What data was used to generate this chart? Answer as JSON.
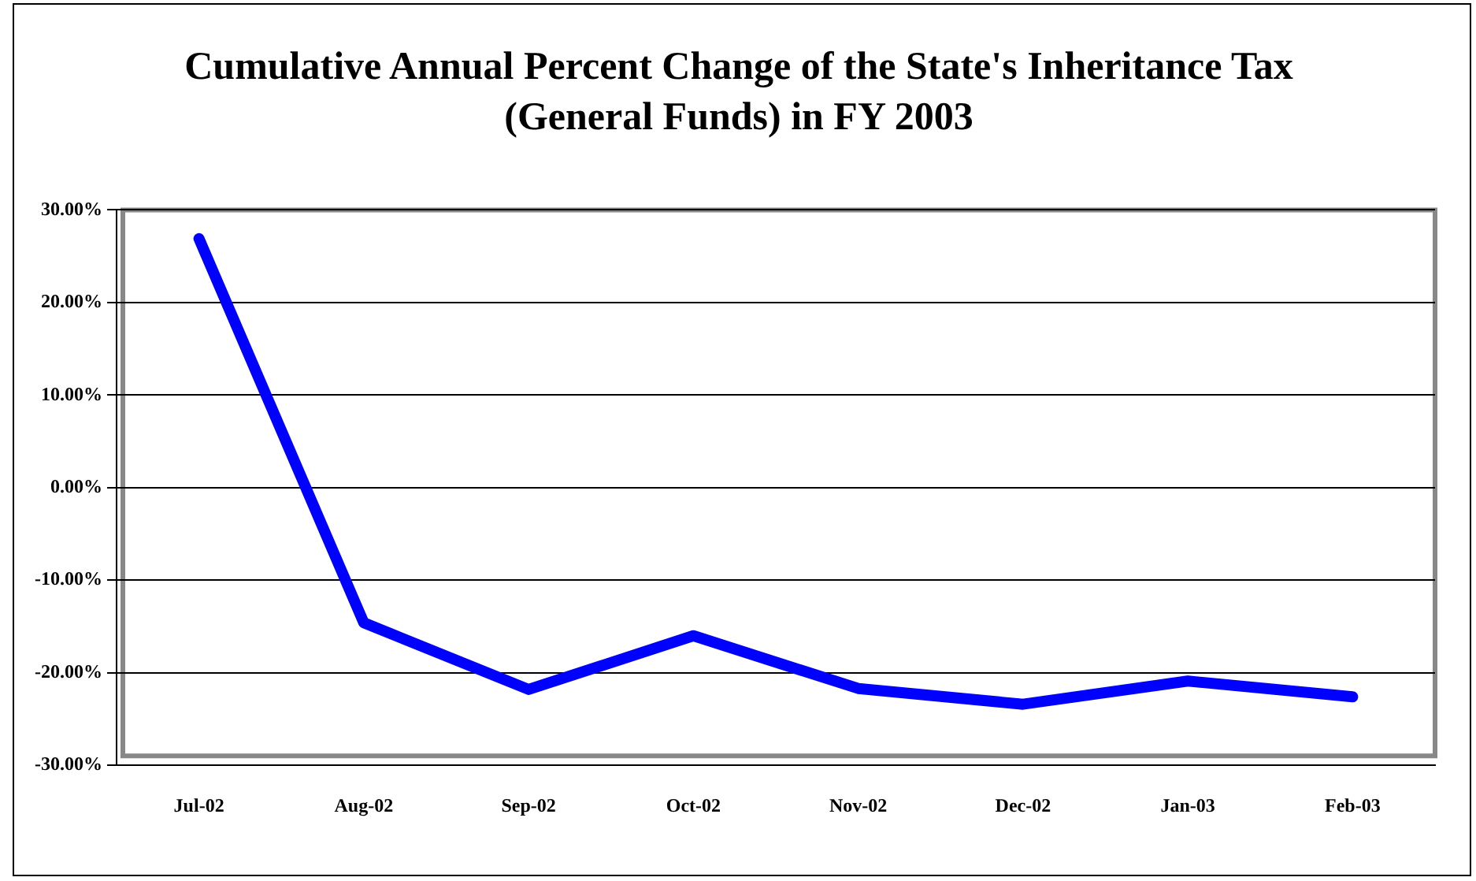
{
  "chart_data": {
    "type": "line",
    "title": "Cumulative Annual Percent Change of the State's Inheritance Tax (General Funds) in FY 2003",
    "categories": [
      "Jul-02",
      "Aug-02",
      "Sep-02",
      "Oct-02",
      "Nov-02",
      "Dec-02",
      "Jan-03",
      "Feb-03"
    ],
    "series": [
      {
        "color": "#0000ff",
        "values": [
          26.9,
          -14.6,
          -21.8,
          -16.0,
          -21.7,
          -23.4,
          -20.9,
          -22.6
        ]
      }
    ],
    "ylim": [
      -30,
      30
    ],
    "yticks": [
      {
        "value": -30,
        "label": "-30.00%"
      },
      {
        "value": -20,
        "label": "-20.00%"
      },
      {
        "value": -10,
        "label": "-10.00%"
      },
      {
        "value": 0,
        "label": "0.00%"
      },
      {
        "value": 10,
        "label": "10.00%"
      },
      {
        "value": 20,
        "label": "20.00%"
      },
      {
        "value": 30,
        "label": "30.00%"
      }
    ],
    "grid": "y",
    "legend": false,
    "marker": "none",
    "line_style": "solid"
  }
}
